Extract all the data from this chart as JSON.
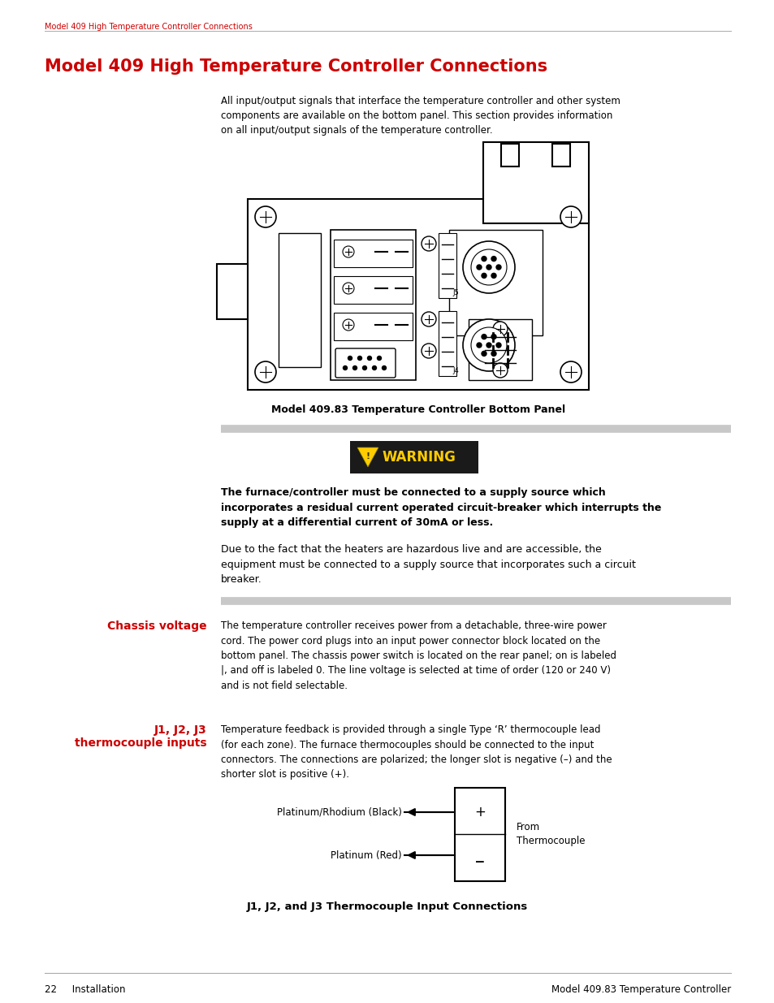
{
  "page_header": "Model 409 High Temperature Controller Connections",
  "page_header_color": "#cc0000",
  "title": "Model 409 High Temperature Controller Connections",
  "title_color": "#cc0000",
  "title_fontsize": 15,
  "intro_text": "All input/output signals that interface the temperature controller and other system\ncomponents are available on the bottom panel. This section provides information\non all input/output signals of the temperature controller.",
  "figure_caption": "Model 409.83 Temperature Controller Bottom Panel",
  "warning_text": "WARNING",
  "warning_bold_text": "The furnace/controller must be connected to a supply source which\nincorporates a residual current operated circuit-breaker which interrupts the\nsupply at a differential current of 30mA or less.",
  "warning_normal_text": "Due to the fact that the heaters are hazardous live and are accessible, the\nequipment must be connected to a supply source that incorporates such a circuit\nbreaker.",
  "section1_label": "Chassis voltage",
  "section1_color": "#cc0000",
  "section1_text": "The temperature controller receives power from a detachable, three-wire power\ncord. The power cord plugs into an input power connector block located on the\nbottom panel. The chassis power switch is located on the rear panel; on is labeled\n|, and off is labeled 0. The line voltage is selected at time of order (120 or 240 V)\nand is not field selectable.",
  "section2_label": "J1, J2, J3\nthermocouple inputs",
  "section2_color": "#cc0000",
  "section2_text": "Temperature feedback is provided through a single Type ‘R’ thermocouple lead\n(for each zone). The furnace thermocouples should be connected to the input\nconnectors. The connections are polarized; the longer slot is negative (–) and the\nshorter slot is positive (+).",
  "diagram_caption": "J1, J2, and J3 Thermocouple Input Connections",
  "diagram_label1": "Platinum/Rhodium (Black)",
  "diagram_label2": "Platinum (Red)",
  "diagram_from": "From\nThermocouple",
  "diagram_plus": "+",
  "diagram_minus": "_",
  "footer_left": "22     Installation",
  "footer_right": "Model 409.83 Temperature Controller",
  "background_color": "#ffffff",
  "text_color": "#000000",
  "gray_line_color": "#c8c8c8",
  "warning_bg_color": "#1a1a1a",
  "warning_fg_color": "#ffcc00"
}
